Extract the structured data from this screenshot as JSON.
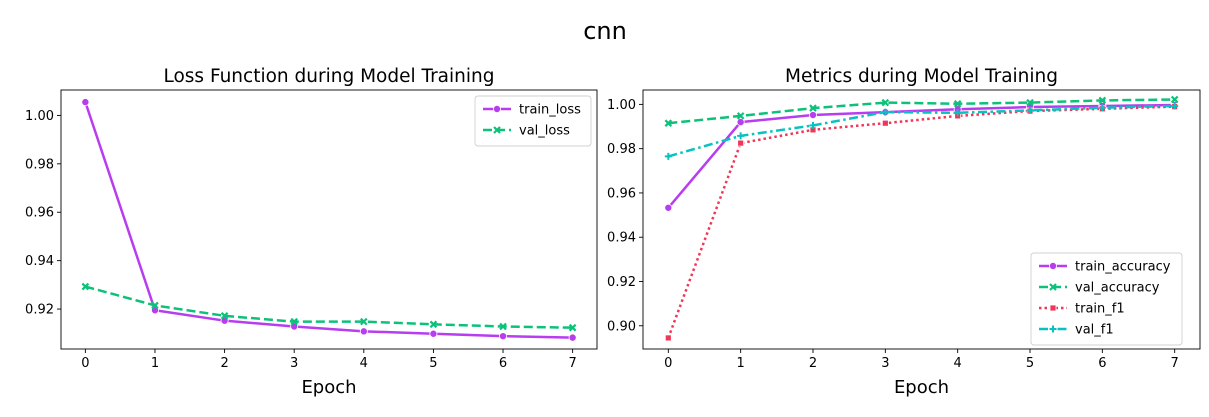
{
  "suptitle": "cnn",
  "chart_data": [
    {
      "type": "line",
      "title": "Loss Function during Model Training",
      "xlabel": "Epoch",
      "ylabel": "",
      "x": [
        0,
        1,
        2,
        3,
        4,
        5,
        6,
        7
      ],
      "xlim": [
        -0.35,
        7.35
      ],
      "ylim": [
        0.9035,
        1.0105
      ],
      "yticks": [
        0.92,
        0.94,
        0.96,
        0.98,
        1.0
      ],
      "ytick_labels": [
        "0.92",
        "0.94",
        "0.96",
        "0.98",
        "1.00"
      ],
      "legend_position": "top-right",
      "series": [
        {
          "name": "train_loss",
          "values": [
            1.0055,
            0.9195,
            0.9152,
            0.9128,
            0.9108,
            0.9098,
            0.9088,
            0.9082
          ],
          "color": "#b83cf0",
          "dash": "solid",
          "marker": "circle"
        },
        {
          "name": "val_loss",
          "values": [
            0.9293,
            0.9215,
            0.9172,
            0.9148,
            0.9148,
            0.9137,
            0.9128,
            0.9123
          ],
          "color": "#0dc17a",
          "dash": "dashed",
          "marker": "x"
        }
      ]
    },
    {
      "type": "line",
      "title": "Metrics during Model Training",
      "xlabel": "Epoch",
      "ylabel": "",
      "x": [
        0,
        1,
        2,
        3,
        4,
        5,
        6,
        7
      ],
      "xlim": [
        -0.35,
        7.35
      ],
      "ylim": [
        0.8895,
        1.0065
      ],
      "yticks": [
        0.9,
        0.92,
        0.94,
        0.96,
        0.98,
        1.0
      ],
      "ytick_labels": [
        "0.90",
        "0.92",
        "0.94",
        "0.96",
        "0.98",
        "1.00"
      ],
      "legend_position": "bottom-right",
      "series": [
        {
          "name": "train_accuracy",
          "values": [
            0.9533,
            0.992,
            0.9952,
            0.9965,
            0.9978,
            0.9988,
            0.9993,
            0.9997
          ],
          "color": "#b83cf0",
          "dash": "solid",
          "marker": "circle"
        },
        {
          "name": "val_accuracy",
          "values": [
            0.9915,
            0.9948,
            0.9983,
            1.0008,
            1.0003,
            1.0008,
            1.0018,
            1.0022
          ],
          "color": "#0dc17a",
          "dash": "dashed",
          "marker": "x"
        },
        {
          "name": "train_f1",
          "values": [
            0.8945,
            0.9825,
            0.9885,
            0.9915,
            0.9948,
            0.997,
            0.998,
            0.999
          ],
          "color": "#f0375a",
          "dash": "dotted",
          "marker": "square"
        },
        {
          "name": "val_f1",
          "values": [
            0.9765,
            0.9858,
            0.9905,
            0.9965,
            0.9962,
            0.9973,
            0.9985,
            0.9993
          ],
          "color": "#08c2c2",
          "dash": "dashdot",
          "marker": "plus"
        }
      ]
    }
  ]
}
